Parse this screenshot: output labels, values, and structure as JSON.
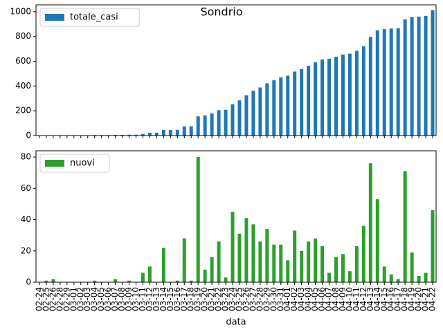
{
  "chart_data": [
    {
      "type": "bar",
      "title": "Sondrio",
      "series": [
        {
          "name": "totale_casi",
          "color": "#1f77b4",
          "values": [
            0,
            1,
            3,
            3,
            3,
            3,
            3,
            3,
            4,
            4,
            4,
            6,
            6,
            7,
            7,
            13,
            23,
            23,
            45,
            45,
            46,
            74,
            75,
            155,
            163,
            179,
            205,
            208,
            253,
            284,
            325,
            362,
            388,
            422,
            446,
            470,
            484,
            517,
            537,
            563,
            591,
            614,
            620,
            636,
            654,
            661,
            684,
            720,
            796,
            849,
            859,
            864,
            866,
            937,
            956,
            960,
            966,
            1012
          ]
        }
      ],
      "ylim": [
        0,
        1055
      ],
      "yticks": [
        0,
        200,
        400,
        600,
        800,
        1000
      ],
      "legend": "upper left"
    },
    {
      "type": "bar",
      "xlabel": "data",
      "categories": [
        "02-24",
        "02-25",
        "02-26",
        "02-28",
        "02-29",
        "03-01",
        "03-02",
        "03-03",
        "03-04",
        "03-05",
        "03-06",
        "03-07",
        "03-08",
        "03-09",
        "03-10",
        "03-11",
        "03-12",
        "03-13",
        "03-14",
        "03-15",
        "03-16",
        "03-17",
        "03-18",
        "03-19",
        "03-20",
        "03-21",
        "03-22",
        "03-23",
        "03-24",
        "03-25",
        "03-26",
        "03-27",
        "03-28",
        "03-29",
        "03-30",
        "03-31",
        "04-01",
        "04-02",
        "04-03",
        "04-04",
        "04-05",
        "04-06",
        "04-07",
        "04-08",
        "04-09",
        "04-10",
        "04-11",
        "04-12",
        "04-13",
        "04-14",
        "04-15",
        "04-16",
        "04-17",
        "04-18",
        "04-19",
        "04-20",
        "04-21",
        "04-22"
      ],
      "series": [
        {
          "name": "nuovi",
          "color": "#2ca02c",
          "values": [
            0,
            1,
            2,
            0,
            0,
            0,
            0,
            0,
            1,
            0,
            0,
            2,
            0,
            1,
            0,
            6,
            10,
            0,
            22,
            0,
            1,
            28,
            1,
            80,
            8,
            16,
            26,
            3,
            45,
            31,
            41,
            37,
            26,
            34,
            24,
            24,
            14,
            33,
            20,
            26,
            28,
            23,
            6,
            16,
            18,
            7,
            23,
            36,
            76,
            53,
            10,
            5,
            2,
            71,
            19,
            4,
            6,
            46
          ]
        }
      ],
      "ylim": [
        0,
        84
      ],
      "yticks": [
        0,
        20,
        40,
        60,
        80
      ],
      "legend": "upper left"
    }
  ]
}
